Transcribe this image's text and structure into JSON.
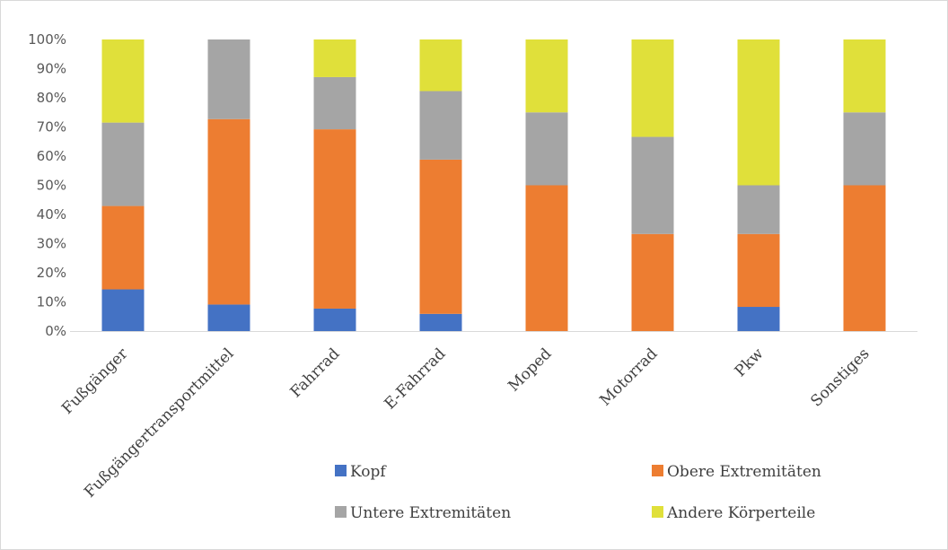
{
  "chart_data": {
    "type": "bar",
    "stacked": true,
    "title": "",
    "xlabel": "",
    "ylabel": "",
    "ylim": [
      0,
      100
    ],
    "yticks": [
      "0%",
      "10%",
      "20%",
      "30%",
      "40%",
      "50%",
      "60%",
      "70%",
      "80%",
      "90%",
      "100%"
    ],
    "grid": false,
    "legend_position": "bottom",
    "categories": [
      "Fußgänger",
      "Fußgängertransportmittel",
      "Fahrrad",
      "E-Fahrrad",
      "Moped",
      "Motorrad",
      "Pkw",
      "Sonstiges"
    ],
    "series": [
      {
        "name": "Kopf",
        "color": "#4472C4",
        "values": [
          14.3,
          9.1,
          7.7,
          5.9,
          0,
          0,
          8.3,
          0
        ]
      },
      {
        "name": "Obere Extremitäten",
        "color": "#ED7D31",
        "values": [
          28.6,
          63.6,
          61.5,
          52.9,
          50,
          33.3,
          25,
          50
        ]
      },
      {
        "name": "Untere Extremitäten",
        "color": "#A5A5A5",
        "values": [
          28.6,
          27.3,
          17.9,
          23.5,
          25,
          33.3,
          16.7,
          25
        ]
      },
      {
        "name": "Andere Körperteile",
        "color": "#E0E03A",
        "values": [
          28.5,
          0,
          12.9,
          17.7,
          25,
          33.4,
          50,
          25
        ]
      }
    ]
  }
}
